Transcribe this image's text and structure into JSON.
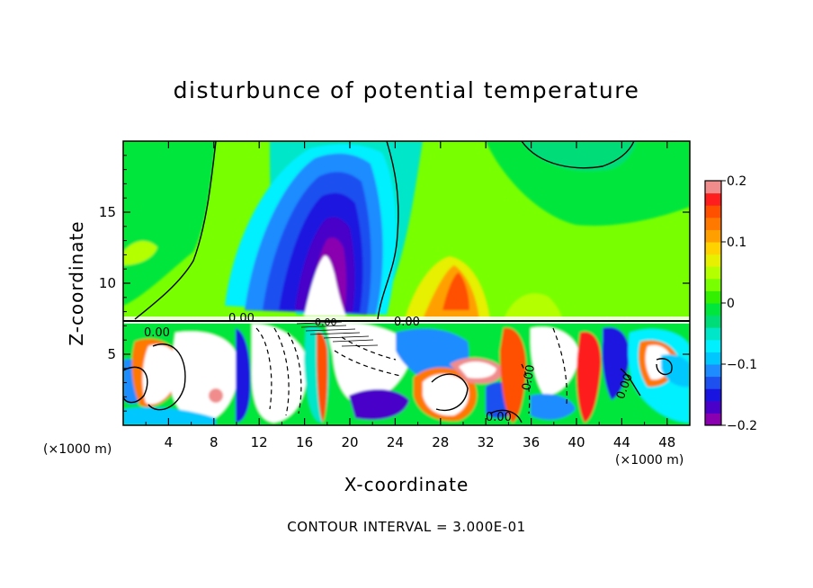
{
  "chart_data": {
    "type": "heatmap",
    "title": "disturbunce of potential temperature",
    "xlabel": "X-coordinate",
    "ylabel": "Z-coordinate",
    "x_unit": "(×1000 m)",
    "x_range": [
      0,
      50
    ],
    "y_range": [
      0,
      20
    ],
    "x_ticks": [
      4,
      8,
      12,
      16,
      20,
      24,
      28,
      32,
      36,
      40,
      44,
      48
    ],
    "y_ticks": [
      5,
      10,
      15
    ],
    "colorbar": {
      "range": [
        -0.2,
        0.2
      ],
      "tick_values": [
        -0.2,
        -0.1,
        0,
        0.1,
        0.2
      ],
      "tick_labels": [
        "−0.2",
        "−0.1",
        "0",
        "0.1",
        "0.2"
      ],
      "colors": [
        "#8a00b0",
        "#4a00c8",
        "#1a14e0",
        "#1e50f0",
        "#1e8cff",
        "#00c8ff",
        "#00f0ff",
        "#00e6c8",
        "#00dc78",
        "#00e63c",
        "#32f000",
        "#78ff00",
        "#b4ff00",
        "#e6f000",
        "#ffd200",
        "#ffa000",
        "#ff7800",
        "#ff5000",
        "#ff1e1e",
        "#f08c8c"
      ]
    },
    "contour_interval_text": "CONTOUR INTERVAL = 3.000E-01",
    "contour_labels": [
      "0.00",
      "0.00",
      "0.00",
      "0.00",
      "0.00",
      "0.00",
      "0.00"
    ]
  }
}
